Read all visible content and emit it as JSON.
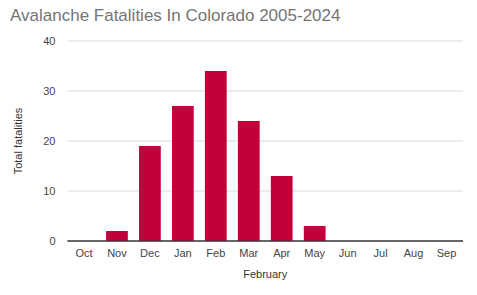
{
  "chart_data": {
    "type": "bar",
    "title": "Avalanche Fatalities In Colorado 2005-2024",
    "x_label": "February",
    "y_label": "Total fatalities",
    "categories": [
      "Oct",
      "Nov",
      "Dec",
      "Jan",
      "Feb",
      "Mar",
      "Apr",
      "May",
      "Jun",
      "Jul",
      "Aug",
      "Sep"
    ],
    "values": [
      0,
      2,
      19,
      27,
      34,
      24,
      13,
      3,
      0,
      0,
      0,
      0
    ],
    "color": "#c4003b",
    "ylim": [
      0,
      40
    ],
    "yticks": [
      0,
      10,
      20,
      30,
      40
    ],
    "grid": true
  }
}
